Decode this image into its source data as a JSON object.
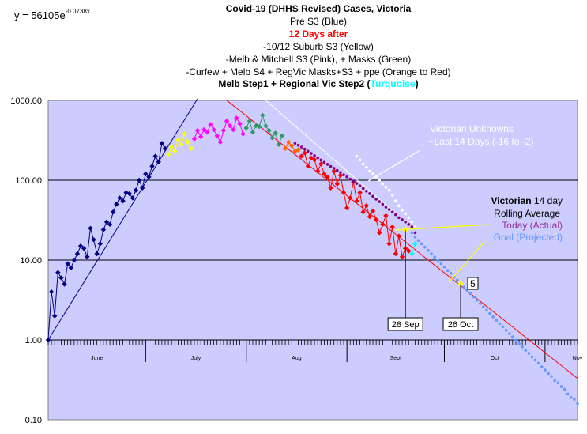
{
  "chart_data": {
    "type": "line",
    "y_scale": "log",
    "ylim": [
      0.1,
      1000
    ],
    "y_ticks": [
      "1000.00",
      "100.00",
      "10.00",
      "1.00",
      "0.10"
    ],
    "day_range": [
      0,
      163
    ],
    "months": [
      {
        "label": "June",
        "start_day": 0,
        "end_day": 30
      },
      {
        "label": "July",
        "start_day": 30,
        "end_day": 61
      },
      {
        "label": "Aug",
        "start_day": 61,
        "end_day": 92
      },
      {
        "label": "Sept",
        "start_day": 92,
        "end_day": 122
      },
      {
        "label": "Oct",
        "start_day": 122,
        "end_day": 153
      },
      {
        "label": "Nov",
        "start_day": 153,
        "end_day": 183
      }
    ],
    "equation": {
      "base": "y = 56105e",
      "exponent": "-0.0738x"
    },
    "title": [
      {
        "text": "Covid-19 (DHHS Revised) Cases, Victoria",
        "color": "#000000",
        "bold": true
      },
      {
        "text": "Pre S3 (Blue)",
        "color": "#000000",
        "bold": false
      },
      {
        "text": "12 Days after",
        "color": "#ff0000",
        "bold": true
      },
      {
        "text": "-10/12 Suburb S3 (Yellow)",
        "color": "#000000",
        "bold": false
      },
      {
        "text": "-Melb & Mitchell S3 (Pink), + Masks (Green)",
        "color": "#000000",
        "bold": false
      },
      {
        "text": "-Curfew + Melb S4 + RegVic Masks+S3 + ppe (Orange to Red)",
        "color": "#000000",
        "bold": false
      }
    ],
    "title_last": {
      "main": "Melb Step1 + Regional Vic Step2 (",
      "highlight": "Turquoise",
      "close": ")"
    },
    "annotations": {
      "unknowns_line1": "Victorian Unknowns",
      "unknowns_line2": "~Last 14 Days (-16 to -2)",
      "legend_bold": "Victorian",
      "legend_rest": " 14 day",
      "legend_line2": "Rolling Average",
      "legend_today": "Today (Actual)",
      "legend_goal": "Goal (Projected)",
      "marker_28sep": "28 Sep",
      "marker_26oct": "26 Oct",
      "goal_value_label": "5"
    },
    "colors": {
      "plot_bg": "#ccccff",
      "blue": "#000080",
      "yellow": "#ffff00",
      "pink": "#ff00ff",
      "green": "#339966",
      "orange": "#ff6600",
      "red": "#ff0000",
      "purple": "#800080",
      "projection": "#6699ff",
      "unknowns": "#ffffff",
      "today_text": "#993399",
      "goal_text": "#6699ff",
      "turquoise": "#00ffff",
      "pointer": "#ffff00"
    },
    "series": [
      {
        "name": "Pre S3 (Blue)",
        "color_key": "blue",
        "marker": "diamond",
        "connected": true,
        "x": [
          0,
          1,
          2,
          3,
          4,
          5,
          6,
          7,
          8,
          9,
          10,
          11,
          12,
          13,
          14,
          15,
          16,
          17,
          18,
          19,
          20,
          21,
          22,
          23,
          24,
          25,
          26,
          27,
          28,
          29,
          30,
          31,
          32,
          33,
          34,
          35,
          36
        ],
        "values": [
          1,
          4,
          2,
          7,
          6,
          5,
          9,
          8,
          10,
          12,
          15,
          14,
          11,
          25,
          18,
          12,
          16,
          24,
          30,
          28,
          40,
          50,
          60,
          55,
          70,
          68,
          60,
          75,
          100,
          80,
          120,
          110,
          150,
          200,
          170,
          290,
          250
        ]
      },
      {
        "name": "-10/12 Suburb S3 (Yellow)",
        "color_key": "yellow",
        "marker": "diamond",
        "connected": true,
        "x": [
          37,
          38,
          39,
          40,
          41,
          42,
          43,
          44
        ],
        "values": [
          210,
          260,
          230,
          320,
          280,
          380,
          300,
          250
        ]
      },
      {
        "name": "-Melb & Mitchell S3 (Pink)",
        "color_key": "pink",
        "marker": "diamond",
        "connected": true,
        "x": [
          45,
          46,
          47,
          48,
          49,
          50,
          51,
          52,
          53,
          54,
          55,
          56,
          57,
          58,
          59,
          60
        ],
        "values": [
          330,
          420,
          350,
          430,
          400,
          500,
          430,
          360,
          300,
          420,
          550,
          480,
          430,
          600,
          510,
          380
        ]
      },
      {
        "name": "+ Masks (Green)",
        "color_key": "green",
        "marker": "diamond",
        "connected": true,
        "x": [
          61,
          62,
          63,
          64,
          65,
          66,
          67,
          68,
          69,
          70,
          71,
          72
        ],
        "values": [
          450,
          550,
          400,
          480,
          470,
          650,
          480,
          420,
          340,
          390,
          280,
          360
        ]
      },
      {
        "name": "Curfew + Melb S4 (Orange)",
        "color_key": "orange",
        "marker": "diamond",
        "connected": true,
        "x": [
          73,
          74,
          75,
          76,
          77
        ],
        "values": [
          250,
          300,
          270,
          230,
          240
        ]
      },
      {
        "name": "+ RegVic Masks+S3 + ppe (Red)",
        "color_key": "red",
        "marker": "diamond",
        "connected": true,
        "x": [
          78,
          79,
          80,
          81,
          82,
          83,
          84,
          85,
          86,
          87,
          88,
          89,
          90,
          91,
          92,
          93,
          94,
          95,
          96,
          97,
          98,
          99,
          100,
          101,
          102,
          103,
          104,
          105,
          106,
          107,
          108,
          109,
          110,
          111
        ],
        "values": [
          200,
          220,
          150,
          190,
          180,
          130,
          160,
          120,
          110,
          80,
          130,
          90,
          115,
          70,
          45,
          60,
          95,
          55,
          70,
          40,
          48,
          35,
          41,
          32,
          22,
          28,
          36,
          16,
          26,
          12,
          20,
          11,
          14,
          13
        ]
      },
      {
        "name": "Turquoise",
        "color_key": "turquoise",
        "marker": "diamond",
        "connected": true,
        "x": [
          112,
          113
        ],
        "values": [
          12,
          16
        ]
      },
      {
        "name": "Victorian 14 day Rolling Average (Today - Actual)",
        "color_key": "purple",
        "marker": "dot",
        "connected": false,
        "x": [
          76,
          77,
          78,
          79,
          80,
          81,
          82,
          83,
          84,
          85,
          86,
          87,
          88,
          89,
          90,
          91,
          92,
          93,
          94,
          95,
          96,
          97,
          98,
          99,
          100,
          101,
          102,
          103,
          104,
          105,
          106,
          107,
          108,
          109,
          110,
          111,
          112,
          113
        ],
        "values": [
          290,
          275,
          260,
          245,
          231,
          217,
          203,
          191,
          179,
          168,
          158,
          149,
          141,
          133,
          125,
          117,
          110,
          103,
          97,
          91,
          85,
          79,
          73,
          68,
          63,
          58,
          54,
          50,
          46,
          43,
          40,
          37,
          34,
          32,
          30,
          28,
          26,
          22
        ]
      },
      {
        "name": "Goal (Projected)",
        "color_key": "projection",
        "marker": "dot",
        "connected": false,
        "x": [
          112,
          113,
          114,
          115,
          116,
          117,
          118,
          119,
          120,
          121,
          122,
          123,
          124,
          125,
          126,
          127,
          128,
          129,
          130,
          131,
          132,
          133,
          134,
          135,
          136,
          137,
          138,
          139,
          140,
          141,
          142,
          143,
          144,
          145,
          146,
          147,
          148,
          149,
          150,
          151,
          152,
          153,
          154,
          155,
          156,
          157,
          158,
          159,
          160,
          161,
          162,
          163
        ],
        "values": [
          22,
          19.4,
          17.6,
          16,
          14.5,
          13.2,
          12,
          10.9,
          9.9,
          9,
          8.2,
          7.4,
          6.8,
          6.1,
          5.6,
          5.1,
          4.6,
          4.2,
          3.8,
          3.45,
          3.14,
          2.85,
          2.59,
          2.35,
          2.14,
          1.94,
          1.76,
          1.6,
          1.46,
          1.32,
          1.2,
          1.09,
          0.99,
          0.9,
          0.82,
          0.74,
          0.68,
          0.61,
          0.56,
          0.51,
          0.46,
          0.42,
          0.38,
          0.35,
          0.31,
          0.29,
          0.26,
          0.24,
          0.21,
          0.19,
          0.18,
          0.16
        ]
      },
      {
        "name": "Victorian Unknowns ~Last 14 Days (-16 to -2)",
        "color_key": "unknowns",
        "marker": "dot",
        "connected": false,
        "x": [
          95,
          96,
          97,
          98,
          99,
          100,
          101,
          102,
          103,
          104,
          105,
          106,
          107,
          108,
          109,
          110,
          111,
          112,
          113
        ],
        "values": [
          200,
          180,
          160,
          145,
          130,
          120,
          110,
          100,
          90,
          82,
          75,
          65,
          55,
          48,
          42,
          38,
          34,
          30,
          26
        ]
      }
    ],
    "trendlines": [
      {
        "name": "Pre S3 exponential",
        "color_key": "blue",
        "x": [
          0,
          46
        ],
        "values": [
          1,
          1050
        ]
      },
      {
        "name": "y = 56105e^-0.0738x",
        "color_key": "red",
        "x": [
          55,
          163
        ],
        "values": [
          1000,
          0.33
        ]
      },
      {
        "name": "Unknowns trend",
        "color_key": "unknowns",
        "x": [
          67,
          110
        ],
        "values": [
          1000,
          30
        ]
      }
    ],
    "points": {
      "today": {
        "day": 110,
        "value": 24
      },
      "goal": {
        "day": 127,
        "value": 5
      }
    },
    "vertical_markers": [
      {
        "day": 110,
        "label_key": "marker_28sep"
      },
      {
        "day": 127,
        "label_key": "marker_26oct"
      }
    ]
  }
}
